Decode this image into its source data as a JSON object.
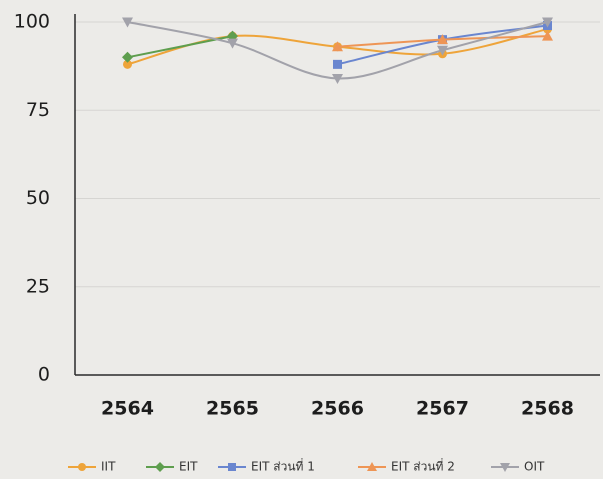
{
  "chart_data": {
    "type": "line",
    "categories": [
      "2564",
      "2565",
      "2566",
      "2567",
      "2568"
    ],
    "series": [
      {
        "name": "IIT",
        "color": "#eea43a",
        "marker": "circle",
        "values": [
          88,
          96,
          93,
          91,
          98
        ]
      },
      {
        "name": "EIT",
        "color": "#5e9e4e",
        "marker": "diamond",
        "values": [
          90,
          96,
          null,
          null,
          null
        ]
      },
      {
        "name": "EIT ส่วนที่ 1",
        "color": "#6a86cf",
        "marker": "square",
        "values": [
          null,
          null,
          88,
          95,
          99
        ]
      },
      {
        "name": "EIT ส่วนที่ 2",
        "color": "#ee9555",
        "marker": "triangle",
        "values": [
          null,
          null,
          93,
          95,
          96
        ]
      },
      {
        "name": "OIT",
        "color": "#a2a2aa",
        "marker": "triangle-down",
        "values": [
          100,
          94,
          84,
          92,
          100
        ]
      }
    ],
    "ylim": [
      0,
      100
    ],
    "yticks": [
      0,
      25,
      50,
      75,
      100
    ],
    "grid": true,
    "smooth": true,
    "legend": "bottom"
  }
}
